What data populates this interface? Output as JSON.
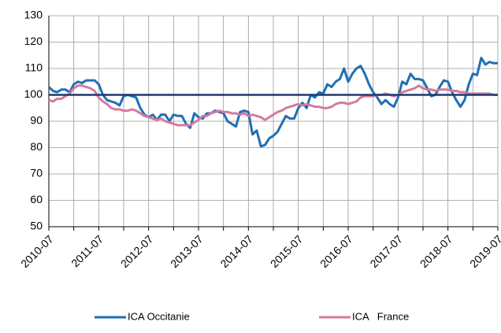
{
  "chart_data": {
    "type": "line",
    "categories": [
      "2010-07",
      null,
      null,
      null,
      null,
      null,
      null,
      null,
      null,
      null,
      null,
      null,
      "2011-07",
      null,
      null,
      null,
      null,
      null,
      null,
      null,
      null,
      null,
      null,
      null,
      "2012-07",
      null,
      null,
      null,
      null,
      null,
      null,
      null,
      null,
      null,
      null,
      null,
      "2013-07",
      null,
      null,
      null,
      null,
      null,
      null,
      null,
      null,
      null,
      null,
      null,
      "2014-07",
      null,
      null,
      null,
      null,
      null,
      null,
      null,
      null,
      null,
      null,
      null,
      "2015-07",
      null,
      null,
      null,
      null,
      null,
      null,
      null,
      null,
      null,
      null,
      null,
      "2016-07",
      null,
      null,
      null,
      null,
      null,
      null,
      null,
      null,
      null,
      null,
      null,
      "2017-07",
      null,
      null,
      null,
      null,
      null,
      null,
      null,
      null,
      null,
      null,
      null,
      "2018-07",
      null,
      null,
      null,
      null,
      null,
      null,
      null,
      null,
      null,
      null,
      null,
      "2019-07"
    ],
    "series": [
      {
        "name": "ICA Occitanie",
        "color": "#1f6fb4",
        "values": [
          103,
          101.5,
          101,
          102,
          102,
          101,
          104,
          105,
          104.5,
          105.5,
          105.5,
          105.5,
          104,
          100,
          98,
          97.5,
          97,
          96,
          99.5,
          100,
          99.5,
          99,
          95,
          92.5,
          91.5,
          92.5,
          90.5,
          92.5,
          92.5,
          90,
          92.5,
          92,
          92,
          89,
          87.5,
          93,
          91.5,
          91,
          93,
          93,
          94,
          93.5,
          93,
          90,
          89,
          88,
          93.5,
          94,
          93.5,
          85,
          86.5,
          80.5,
          81,
          83.5,
          84.5,
          86,
          89,
          92,
          91,
          91,
          95,
          97,
          95,
          100,
          99,
          101,
          100.5,
          104,
          103,
          105,
          106,
          110,
          105,
          108,
          110,
          111,
          108,
          104,
          101,
          99,
          96.5,
          98,
          96.5,
          95.5,
          99,
          105,
          104,
          108,
          106,
          106,
          105.5,
          102.5,
          99.5,
          100,
          103,
          105.5,
          105,
          101,
          98,
          95.5,
          98,
          104,
          108,
          107.5,
          114,
          111.5,
          112.5,
          112,
          112
        ]
      },
      {
        "name": "ICA   France",
        "color": "#d47a9f",
        "values": [
          98,
          97.5,
          98.5,
          98.5,
          99.5,
          100.5,
          102.5,
          103.5,
          103.5,
          103,
          102.5,
          101.5,
          99,
          97.5,
          96.5,
          95,
          94.5,
          94.5,
          94,
          94,
          94.5,
          94,
          93,
          92,
          91.5,
          91,
          90.5,
          91,
          90,
          89.5,
          89,
          88.5,
          88.5,
          88.5,
          88.5,
          89.5,
          90.5,
          92,
          92,
          93,
          93.5,
          94,
          93.5,
          93.5,
          93,
          93,
          92.5,
          93,
          92,
          92.5,
          92,
          91.5,
          90.5,
          91.5,
          92.5,
          93.5,
          94,
          95,
          95.5,
          96,
          96.5,
          96,
          96.5,
          96,
          95.5,
          95.5,
          95,
          95,
          95.5,
          96.5,
          97,
          97,
          96.5,
          97,
          97.5,
          99,
          99.5,
          99.5,
          99.5,
          100,
          100,
          100.5,
          100,
          99.5,
          100,
          101,
          101.5,
          102,
          102.5,
          103.5,
          102.5,
          102,
          102,
          101.5,
          102,
          102,
          102,
          101.5,
          101.5,
          101,
          101,
          100.5,
          100.5,
          100.5,
          100.5,
          100.5,
          100.5,
          100,
          100
        ]
      }
    ],
    "reference_line": {
      "value": 100,
      "color": "#1f3a6e"
    },
    "ylim": [
      50,
      130
    ],
    "yticks": [
      50,
      60,
      70,
      80,
      90,
      100,
      110,
      120,
      130
    ],
    "grid": true
  }
}
